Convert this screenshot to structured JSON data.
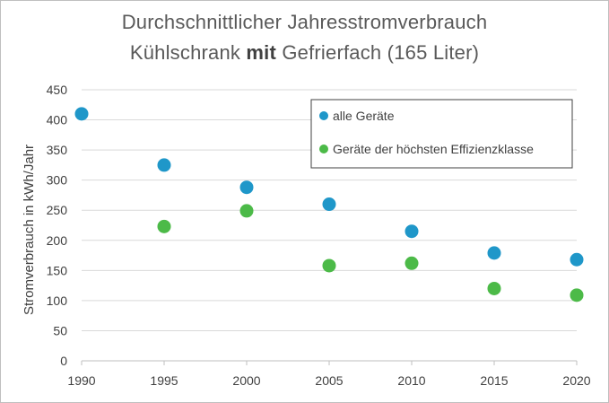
{
  "chart_data": {
    "type": "scatter",
    "title_line1": "Durchschnittlicher Jahresstromverbrauch",
    "title_line2_pre": "Kühlschrank ",
    "title_line2_bold": "mit",
    "title_line2_post": " Gefrierfach (165 Liter)",
    "ylabel": "Stromverbrauch in kWh/Jahr",
    "xlabel": "",
    "xlim": [
      1990,
      2020
    ],
    "ylim": [
      0,
      450
    ],
    "x_ticks": [
      1990,
      1995,
      2000,
      2005,
      2010,
      2015,
      2020
    ],
    "y_ticks": [
      0,
      50,
      100,
      150,
      200,
      250,
      300,
      350,
      400,
      450
    ],
    "grid": "horizontal",
    "legend_position": "top-right",
    "series": [
      {
        "name": "alle Geräte",
        "color": "#1f97c9",
        "points": [
          {
            "x": 1990,
            "y": 410
          },
          {
            "x": 1995,
            "y": 325
          },
          {
            "x": 2000,
            "y": 288
          },
          {
            "x": 2005,
            "y": 260
          },
          {
            "x": 2010,
            "y": 215
          },
          {
            "x": 2015,
            "y": 179
          },
          {
            "x": 2020,
            "y": 168
          }
        ]
      },
      {
        "name": "Geräte der höchsten Effizienzklasse",
        "color": "#4cba48",
        "points": [
          {
            "x": 1995,
            "y": 223
          },
          {
            "x": 2000,
            "y": 249
          },
          {
            "x": 2005,
            "y": 158
          },
          {
            "x": 2010,
            "y": 162
          },
          {
            "x": 2015,
            "y": 120
          },
          {
            "x": 2020,
            "y": 109
          }
        ]
      }
    ]
  }
}
